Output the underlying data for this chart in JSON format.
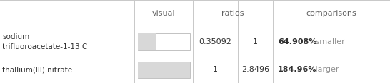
{
  "rows": [
    {
      "name": "sodium\ntrifluoroacetate-1-13 C",
      "ratio1": "0.35092",
      "ratio2": "1",
      "comparison_bold": "64.908%",
      "comparison_text": " smaller",
      "bar_fill_ratio": 0.35092
    },
    {
      "name": "thallium(III) nitrate",
      "ratio1": "1",
      "ratio2": "2.8496",
      "comparison_bold": "184.96%",
      "comparison_text": " larger",
      "bar_fill_ratio": 1.0
    }
  ],
  "header_color": "#606060",
  "name_color": "#303030",
  "number_color": "#303030",
  "bold_color": "#303030",
  "comparison_color": "#909090",
  "bg_color": "#ffffff",
  "grid_color": "#c8c8c8",
  "bar_color": "#d8d8d8",
  "bar_outline": "#b8b8b8",
  "figsize": [
    5.46,
    1.17
  ],
  "dpi": 100,
  "col_bounds": [
    0.0,
    0.345,
    0.495,
    0.61,
    0.7,
    1.0
  ],
  "row_bounds": [
    0.0,
    0.32,
    0.67,
    1.0
  ]
}
